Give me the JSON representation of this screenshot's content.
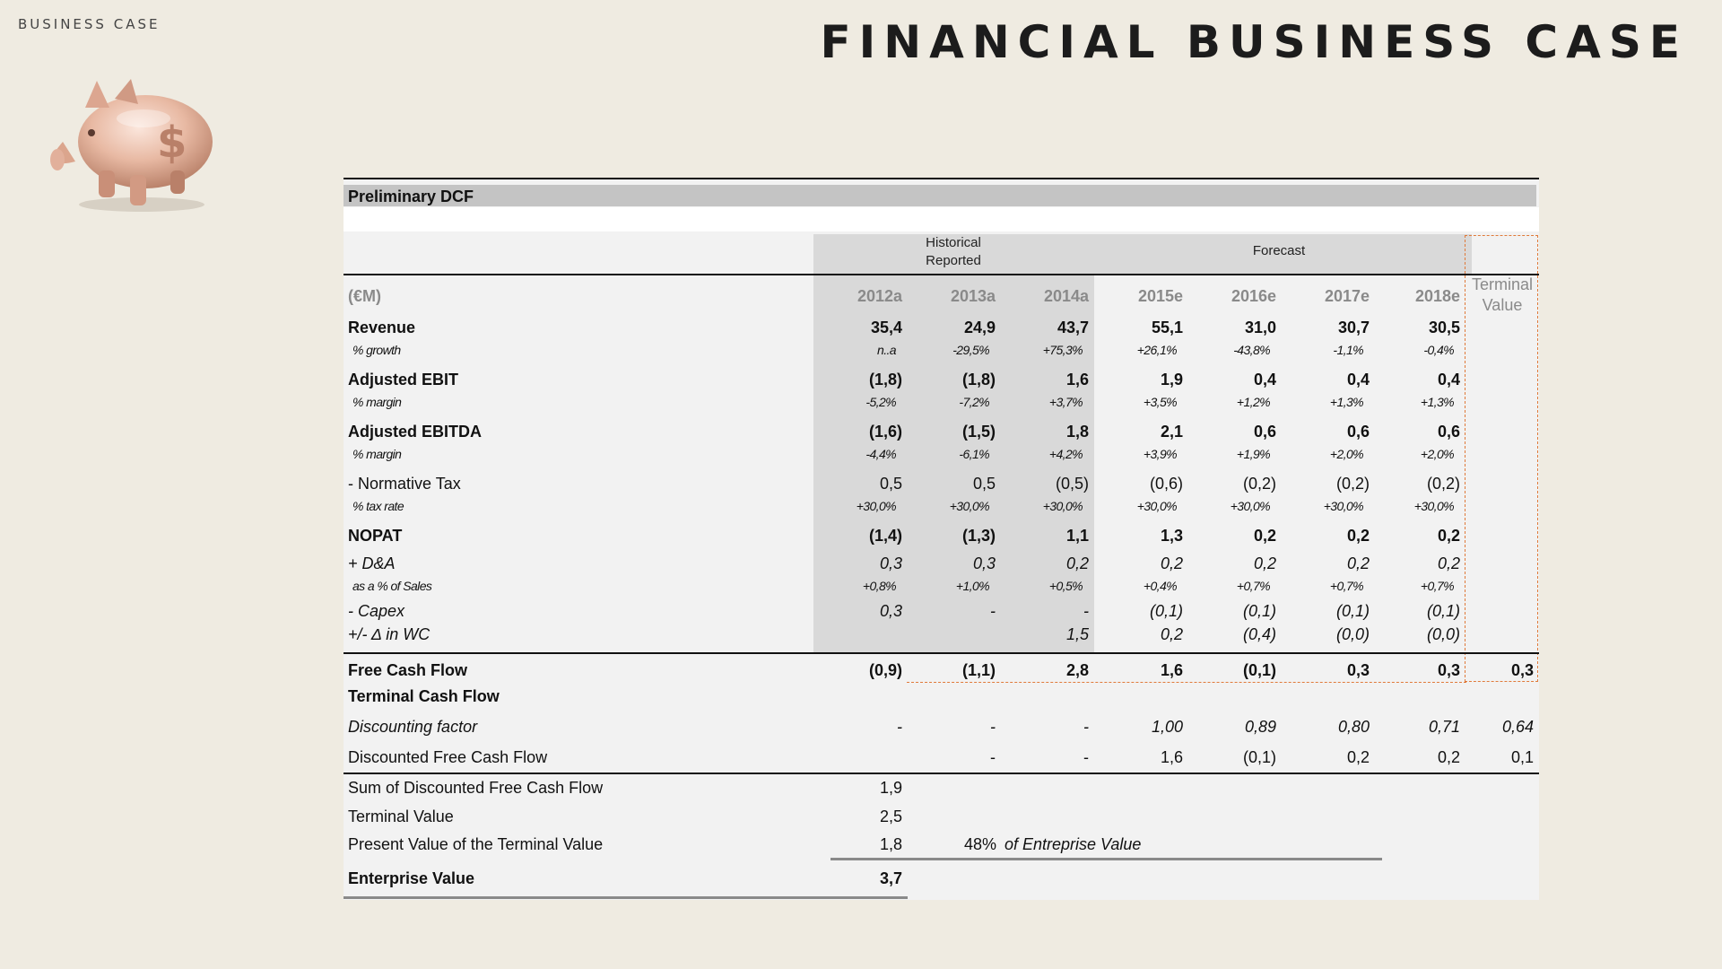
{
  "page": {
    "section_label": "BUSINESS CASE",
    "title": "FINANCIAL BUSINESS CASE",
    "logo_icon": "piggy-bank-icon"
  },
  "table": {
    "caption": "Preliminary DCF",
    "group_historical": "Historical\nReported",
    "group_forecast": "Forecast",
    "unit_label": "(€M)",
    "years": [
      "2012a",
      "2013a",
      "2014a",
      "2015e",
      "2016e",
      "2017e",
      "2018e"
    ],
    "terminal_header": "Terminal\nValue",
    "rows": [
      {
        "label": "Revenue",
        "values": [
          "35,4",
          "24,9",
          "43,7",
          "55,1",
          "31,0",
          "30,7",
          "30,5"
        ]
      },
      {
        "label": "% growth",
        "values": [
          "n..a",
          "-29,5%",
          "+75,3%",
          "+26,1%",
          "-43,8%",
          "-1,1%",
          "-0,4%"
        ]
      },
      {
        "label": "Adjusted EBIT",
        "values": [
          "(1,8)",
          "(1,8)",
          "1,6",
          "1,9",
          "0,4",
          "0,4",
          "0,4"
        ]
      },
      {
        "label": "% margin",
        "values": [
          "-5,2%",
          "-7,2%",
          "+3,7%",
          "+3,5%",
          "+1,2%",
          "+1,3%",
          "+1,3%"
        ]
      },
      {
        "label": "Adjusted EBITDA",
        "values": [
          "(1,6)",
          "(1,5)",
          "1,8",
          "2,1",
          "0,6",
          "0,6",
          "0,6"
        ]
      },
      {
        "label": "% margin",
        "values": [
          "-4,4%",
          "-6,1%",
          "+4,2%",
          "+3,9%",
          "+1,9%",
          "+2,0%",
          "+2,0%"
        ]
      },
      {
        "label": "- Normative Tax",
        "values": [
          "0,5",
          "0,5",
          "(0,5)",
          "(0,6)",
          "(0,2)",
          "(0,2)",
          "(0,2)"
        ]
      },
      {
        "label": "% tax rate",
        "values": [
          "+30,0%",
          "+30,0%",
          "+30,0%",
          "+30,0%",
          "+30,0%",
          "+30,0%",
          "+30,0%"
        ]
      },
      {
        "label": "NOPAT",
        "values": [
          "(1,4)",
          "(1,3)",
          "1,1",
          "1,3",
          "0,2",
          "0,2",
          "0,2"
        ]
      },
      {
        "label": "+ D&A",
        "values": [
          "0,3",
          "0,3",
          "0,2",
          "0,2",
          "0,2",
          "0,2",
          "0,2"
        ]
      },
      {
        "label": "as a % of Sales",
        "values": [
          "+0,8%",
          "+1,0%",
          "+0,5%",
          "+0,4%",
          "+0,7%",
          "+0,7%",
          "+0,7%"
        ]
      },
      {
        "label": "- Capex",
        "values": [
          "0,3",
          "-",
          "-",
          "(0,1)",
          "(0,1)",
          "(0,1)",
          "(0,1)"
        ]
      },
      {
        "label": "+/- Δ in WC",
        "values": [
          "",
          "",
          "1,5",
          "0,2",
          "(0,4)",
          "(0,0)",
          "(0,0)"
        ]
      }
    ],
    "fcf": {
      "label": "Free Cash Flow",
      "values": [
        "(0,9)",
        "(1,1)",
        "2,8",
        "1,6",
        "(0,1)",
        "0,3",
        "0,3"
      ],
      "terminal": "0,3"
    },
    "terminal_cash_flow": {
      "label": "Terminal Cash Flow"
    },
    "discounting_factor": {
      "label": "Discounting factor",
      "values": [
        "-",
        "-",
        "-",
        "1,00",
        "0,89",
        "0,80",
        "0,71"
      ],
      "terminal": "0,64"
    },
    "discounted_fcf": {
      "label": "Discounted Free Cash Flow",
      "values": [
        "",
        "-",
        "-",
        "1,6",
        "(0,1)",
        "0,2",
        "0,2"
      ],
      "terminal": "0,1"
    },
    "summary": [
      {
        "label": "Sum of Discounted Free Cash Flow",
        "value": "1,9"
      },
      {
        "label": "Terminal Value",
        "value": "2,5"
      },
      {
        "label": "Present Value of the Terminal Value",
        "value": "1,8",
        "pct": "48%",
        "note": "of Entreprise Value"
      }
    ],
    "enterprise_value": {
      "label": "Enterprise Value",
      "value": "3,7"
    }
  }
}
